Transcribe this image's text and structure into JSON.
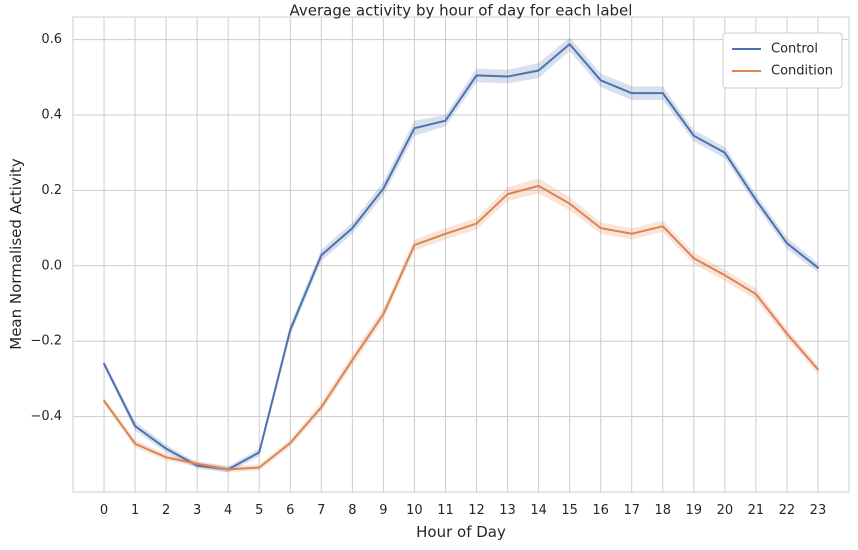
{
  "chart_data": {
    "type": "line",
    "title": "Average activity by hour of day for each label",
    "xlabel": "Hour of Day",
    "ylabel": "Mean Normalised Activity",
    "x": [
      0,
      1,
      2,
      3,
      4,
      5,
      6,
      7,
      8,
      9,
      10,
      11,
      12,
      13,
      14,
      15,
      16,
      17,
      18,
      19,
      20,
      21,
      22,
      23
    ],
    "xlim": [
      -1,
      24
    ],
    "ylim": [
      -0.6,
      0.66
    ],
    "yticks": [
      -0.4,
      -0.2,
      0.0,
      0.2,
      0.4,
      0.6
    ],
    "ytick_labels": [
      "−0.4",
      "−0.2",
      "0.0",
      "0.2",
      "0.4",
      "0.6"
    ],
    "grid": true,
    "legend_position": "top-right",
    "series": [
      {
        "name": "Control",
        "color": "#4c72b0",
        "values": [
          -0.26,
          -0.425,
          -0.485,
          -0.53,
          -0.54,
          -0.495,
          -0.17,
          0.028,
          0.1,
          0.205,
          0.365,
          0.385,
          0.505,
          0.502,
          0.518,
          0.588,
          0.492,
          0.458,
          0.458,
          0.345,
          0.3,
          0.175,
          0.06,
          -0.005
        ],
        "ci": [
          0.008,
          0.012,
          0.01,
          0.008,
          0.008,
          0.01,
          0.015,
          0.015,
          0.015,
          0.018,
          0.02,
          0.015,
          0.018,
          0.018,
          0.02,
          0.018,
          0.018,
          0.018,
          0.018,
          0.015,
          0.015,
          0.015,
          0.015,
          0.012
        ]
      },
      {
        "name": "Condition",
        "color": "#dd8452",
        "values": [
          -0.358,
          -0.472,
          -0.508,
          -0.525,
          -0.54,
          -0.535,
          -0.47,
          -0.375,
          -0.25,
          -0.128,
          0.055,
          0.085,
          0.112,
          0.19,
          0.212,
          0.165,
          0.1,
          0.085,
          0.105,
          0.02,
          -0.025,
          -0.075,
          -0.18,
          -0.275
        ],
        "ci": [
          0.008,
          0.01,
          0.008,
          0.008,
          0.008,
          0.008,
          0.01,
          0.012,
          0.015,
          0.015,
          0.015,
          0.015,
          0.015,
          0.018,
          0.02,
          0.018,
          0.015,
          0.015,
          0.015,
          0.015,
          0.015,
          0.015,
          0.012,
          0.012
        ]
      }
    ]
  }
}
